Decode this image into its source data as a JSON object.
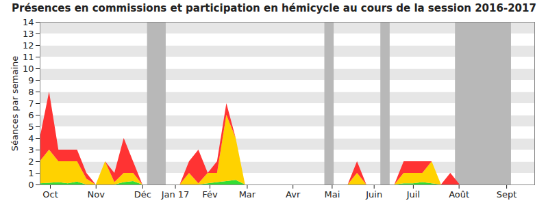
{
  "chart_data": {
    "type": "area",
    "title": "Présences en commissions et participation en hémicycle au cours de la session 2016-2017",
    "y_label": "Séances par semaine",
    "stacked": true,
    "grid": true,
    "x": [
      0,
      1,
      2,
      3,
      4,
      5,
      6,
      7,
      8,
      9,
      10,
      11,
      12,
      13,
      14,
      15,
      16,
      17,
      18,
      19,
      20,
      21,
      22,
      23,
      24,
      25,
      26,
      27,
      28,
      29,
      30,
      31,
      32,
      33,
      34,
      35,
      36,
      37,
      38,
      39,
      40,
      41,
      42,
      43,
      44,
      45,
      46,
      47,
      48,
      49,
      50,
      51,
      52
    ],
    "series": [
      {
        "color": "#33dd33",
        "values": [
          0.1,
          0.15,
          0.2,
          0.1,
          0.25,
          0,
          0,
          0,
          0,
          0.2,
          0.3,
          0,
          0,
          0,
          0,
          0,
          0,
          0,
          0.1,
          0.2,
          0.3,
          0.4,
          0,
          0,
          0,
          0,
          0,
          0,
          0,
          0,
          0,
          0,
          0,
          0,
          0,
          0,
          0,
          0,
          0,
          0.1,
          0.1,
          0.2,
          0.1,
          0,
          0,
          0,
          0,
          0,
          0,
          0,
          0,
          0,
          0
        ]
      },
      {
        "color": "#ffd200",
        "values": [
          1.9,
          2.85,
          1.8,
          1.9,
          1.75,
          0.5,
          0,
          2,
          0.2,
          0.8,
          0.7,
          0,
          0,
          0,
          0,
          0,
          1,
          0.1,
          0.9,
          0.8,
          5.7,
          3.6,
          0,
          0,
          0,
          0,
          0,
          0,
          0,
          0,
          0,
          0,
          0,
          0,
          1,
          0,
          0,
          0,
          0,
          0.9,
          0.9,
          0.8,
          1.9,
          0,
          0,
          0,
          0,
          0,
          0,
          0,
          0,
          0,
          0
        ]
      },
      {
        "color": "#ff3333",
        "values": [
          2,
          5,
          1,
          1,
          1,
          0.5,
          0,
          0,
          0.8,
          3,
          1,
          0,
          0,
          0,
          0,
          0,
          1,
          2.9,
          0,
          1,
          1,
          0,
          0,
          0,
          0,
          0,
          0,
          0,
          0,
          0,
          0,
          0,
          0,
          0,
          1,
          0,
          0,
          0,
          0,
          1,
          1,
          1,
          0,
          0,
          1,
          0,
          0,
          0,
          0,
          0,
          0,
          0,
          0
        ]
      }
    ],
    "shaded_weeks": [
      [
        11.5,
        13.5
      ],
      [
        30.5,
        31.5
      ],
      [
        36.5,
        37.5
      ],
      [
        44.5,
        50.5
      ]
    ],
    "xlim": [
      0,
      53
    ],
    "xticks": [
      {
        "value": 1.1,
        "label": "Oct"
      },
      {
        "value": 6.0,
        "label": "Nov"
      },
      {
        "value": 11.0,
        "label": "Déc"
      },
      {
        "value": 14.5,
        "label": "Jan 17"
      },
      {
        "value": 18.2,
        "label": "Fév"
      },
      {
        "value": 22.2,
        "label": "Mar"
      },
      {
        "value": 27.1,
        "label": "Avr"
      },
      {
        "value": 31.3,
        "label": "Mai"
      },
      {
        "value": 35.8,
        "label": "Juin"
      },
      {
        "value": 40.0,
        "label": "Juil"
      },
      {
        "value": 44.9,
        "label": "Août"
      },
      {
        "value": 50.0,
        "label": "Sept"
      }
    ],
    "ylim": [
      0,
      14
    ],
    "yticks": [
      0,
      1,
      2,
      3,
      4,
      5,
      6,
      7,
      8,
      9,
      10,
      11,
      12,
      13,
      14
    ]
  }
}
